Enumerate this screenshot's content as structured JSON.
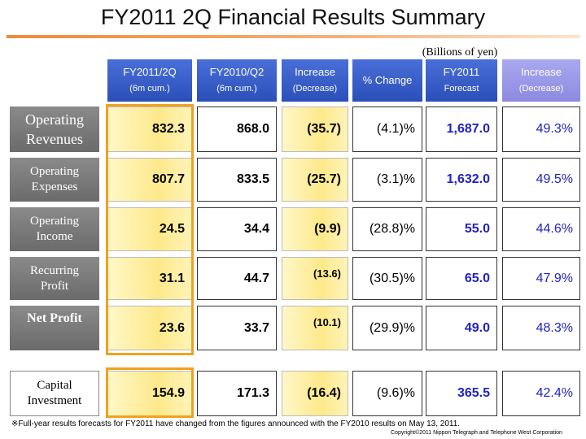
{
  "header": {
    "title": "FY2011 2Q Financial Results Summary",
    "units": "(Billions of yen)"
  },
  "table": {
    "columns": [
      [
        "FY2011/2Q",
        "(6m cum.)"
      ],
      [
        "FY2010/Q2",
        "(6m cum.)"
      ],
      [
        "Increase",
        "(Decrease)"
      ],
      [
        "% Change"
      ],
      [
        "FY2011",
        "Forecast"
      ],
      [
        "Increase",
        "(Decrease)"
      ]
    ],
    "rows": [
      {
        "label": [
          "Operating",
          "Revenues"
        ],
        "cells": [
          "832.3",
          "868.0",
          "(35.7)",
          "(4.1)%",
          "1,687.0",
          "49.3%"
        ]
      },
      {
        "label": [
          "Operating",
          "Expenses"
        ],
        "cells": [
          "807.7",
          "833.5",
          "(25.7)",
          "(3.1)%",
          "1,632.0",
          "49.5%"
        ]
      },
      {
        "label": [
          "Operating",
          "Income"
        ],
        "cells": [
          "24.5",
          "34.4",
          "(9.9)",
          "(28.8)%",
          "55.0",
          "44.6%"
        ]
      },
      {
        "label": [
          "Recurring",
          "Profit"
        ],
        "cells": [
          "31.1",
          "44.7",
          "(13.6)",
          "(30.5)%",
          "65.0",
          "47.9%"
        ]
      },
      {
        "label": [
          "Net Profit"
        ],
        "cells": [
          "23.6",
          "33.7",
          "(10.1)",
          "(29.9)%",
          "49.0",
          "48.3%"
        ]
      },
      {
        "label": [
          "Capital",
          "Investment"
        ],
        "cells": [
          "154.9",
          "171.3",
          "(16.4)",
          "(9.6)%",
          "365.5",
          "42.4%"
        ]
      }
    ]
  },
  "footnote": "※Full-year results forecasts for FY2011 have changed from the figures announced with the FY2010 results on May 13, 2011.",
  "copyright": "Copyright©2011 Nippon Telegraph and Telephone West Corporation"
}
